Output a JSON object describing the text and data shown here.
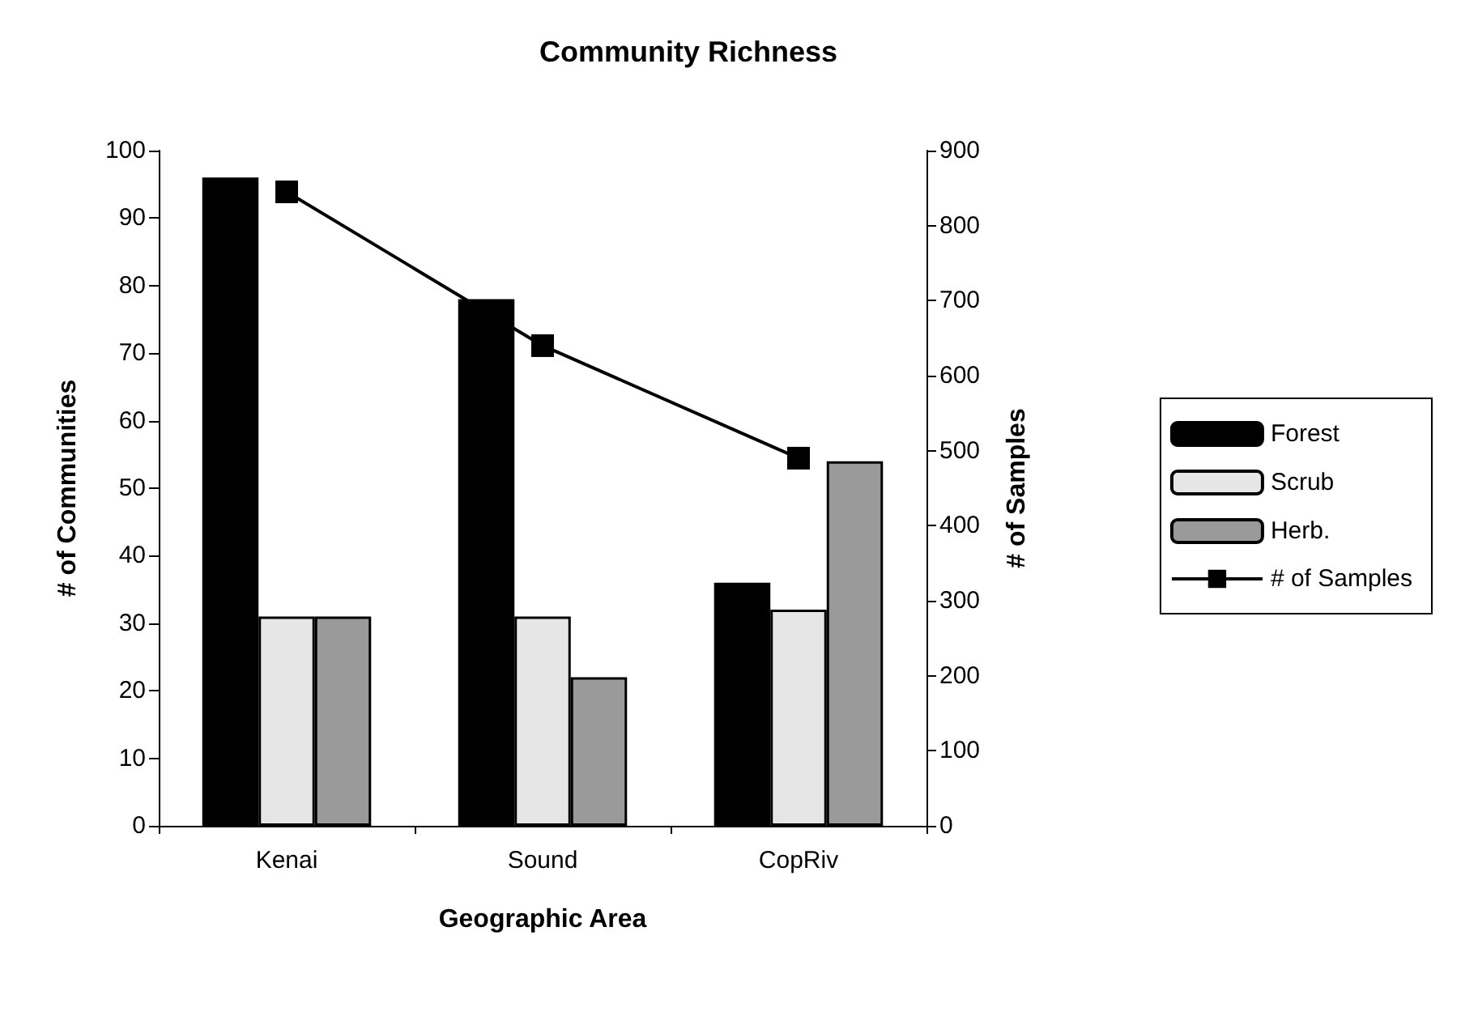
{
  "chart_data": {
    "type": "bar",
    "title": "Community Richness",
    "xlabel": "Geographic Area",
    "ylabel": "# of Communities",
    "y2label": "# of Samples",
    "categories": [
      "Kenai",
      "Sound",
      "CopRiv"
    ],
    "series": [
      {
        "name": "Forest",
        "color": "#000000",
        "values": [
          96,
          78,
          36
        ]
      },
      {
        "name": "Scrub",
        "color": "#e6e6e6",
        "values": [
          31,
          31,
          32
        ]
      },
      {
        "name": "Herb.",
        "color": "#9a9a9a",
        "values": [
          31,
          22,
          54
        ]
      },
      {
        "name": "# of Samples",
        "type": "line",
        "axis": "y2",
        "color": "#000000",
        "marker": "square",
        "values": [
          845,
          640,
          490
        ]
      }
    ],
    "ylim": [
      0,
      100
    ],
    "yticks": [
      0,
      10,
      20,
      30,
      40,
      50,
      60,
      70,
      80,
      90,
      100
    ],
    "y2lim": [
      0,
      900
    ],
    "y2ticks": [
      0,
      100,
      200,
      300,
      400,
      500,
      600,
      700,
      800,
      900
    ],
    "grid": false,
    "legend": "right",
    "line_style": "solid"
  }
}
